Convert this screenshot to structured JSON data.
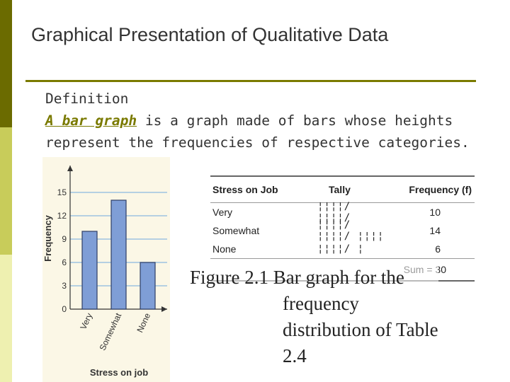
{
  "slide": {
    "title": "Graphical Presentation of Qualitative Data",
    "definition_heading": "Definition",
    "definition_term": "A bar graph",
    "definition_rest_1": " is a graph made of bars whose heights",
    "definition_rest_2": "represent the frequencies of respective categories.",
    "caption_lines": [
      "Figure 2.1 Bar graph for the",
      "frequency",
      "distribution of Table",
      "2.4"
    ]
  },
  "table": {
    "headers": [
      "Stress on Job",
      "Tally",
      "Frequency (f)"
    ],
    "rows": [
      {
        "category": "Very",
        "tally": "¦¦¦¦/ ¦¦¦¦/",
        "frequency": "10"
      },
      {
        "category": "Somewhat",
        "tally": "¦¦¦¦/ ¦¦¦¦/ ¦¦¦¦",
        "frequency": "14"
      },
      {
        "category": "None",
        "tally": "¦¦¦¦/ ¦",
        "frequency": "6"
      }
    ],
    "sum_label": "Sum = 30"
  },
  "chart_data": {
    "type": "bar",
    "categories": [
      "Very",
      "Somewhat",
      "None"
    ],
    "values": [
      10,
      14,
      6
    ],
    "xlabel": "Stress on job",
    "ylabel": "Frequency",
    "yticks": [
      0,
      3,
      6,
      9,
      12,
      15
    ],
    "ylim": [
      0,
      18
    ],
    "grid": true,
    "bar_color": "#7f9ed6",
    "grid_color": "#9ec3e0"
  }
}
